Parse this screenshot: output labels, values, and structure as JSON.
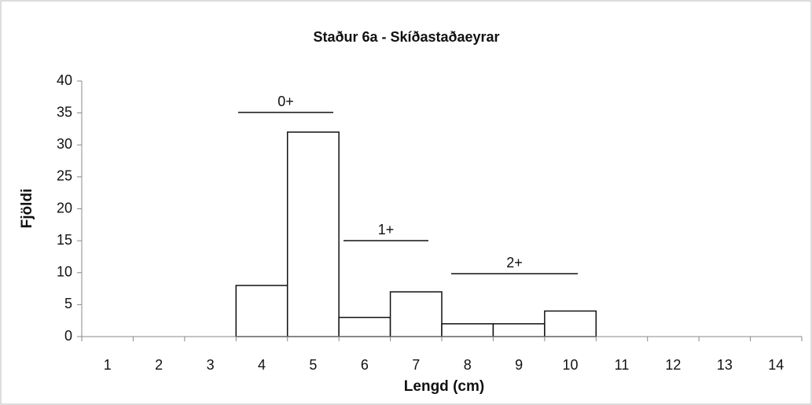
{
  "chart_data": {
    "type": "bar",
    "title": "Staður 6a - Skíðastaðaeyrar",
    "x_label": "Lengd (cm)",
    "y_label": "Fjöldi",
    "categories": [
      "1",
      "2",
      "3",
      "4",
      "5",
      "6",
      "7",
      "8",
      "9",
      "10",
      "11",
      "12",
      "13",
      "14"
    ],
    "values": [
      0,
      0,
      0,
      8,
      32,
      3,
      7,
      2,
      2,
      4,
      0,
      0,
      0,
      0
    ],
    "color": "#ffffff",
    "ylim": [
      0,
      40
    ],
    "yticks": [
      0,
      5,
      10,
      15,
      20,
      25,
      30,
      35,
      40
    ],
    "annotations": [
      "0+",
      "1+",
      "2+"
    ]
  }
}
